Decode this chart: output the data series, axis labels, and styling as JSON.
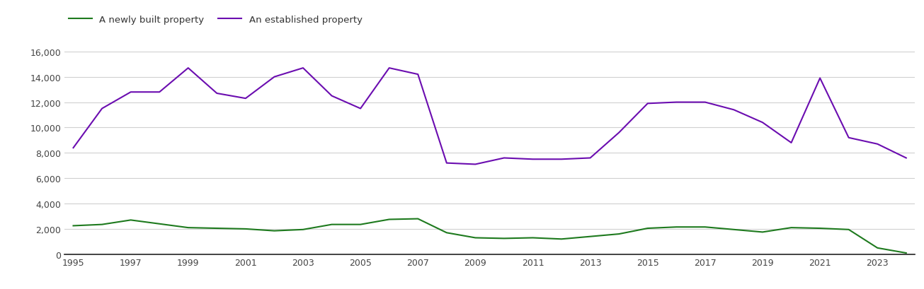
{
  "years": [
    1995,
    1996,
    1997,
    1998,
    1999,
    2000,
    2001,
    2002,
    2003,
    2004,
    2005,
    2006,
    2007,
    2008,
    2009,
    2010,
    2011,
    2012,
    2013,
    2014,
    2015,
    2016,
    2017,
    2018,
    2019,
    2020,
    2021,
    2022,
    2023,
    2024
  ],
  "new_homes": [
    2250,
    2350,
    2700,
    2400,
    2100,
    2050,
    2000,
    1850,
    1950,
    2350,
    2350,
    2750,
    2800,
    1700,
    1300,
    1250,
    1300,
    1200,
    1400,
    1600,
    2050,
    2150,
    2150,
    1950,
    1750,
    2100,
    2050,
    1950,
    500,
    100
  ],
  "established_homes": [
    8400,
    11500,
    12800,
    12800,
    14700,
    12700,
    12300,
    14000,
    14700,
    12500,
    11500,
    14700,
    14200,
    7200,
    7100,
    7600,
    7500,
    7500,
    7600,
    9600,
    11900,
    12000,
    12000,
    11400,
    10400,
    8800,
    13900,
    9200,
    8700,
    7600
  ],
  "new_homes_color": "#1e7a1e",
  "established_homes_color": "#6b0db0",
  "background_color": "#ffffff",
  "grid_color": "#d0d0d0",
  "ylim": [
    0,
    16000
  ],
  "yticks": [
    0,
    2000,
    4000,
    6000,
    8000,
    10000,
    12000,
    14000,
    16000
  ],
  "ytick_labels": [
    "0",
    "2,000",
    "4,000",
    "6,000",
    "8,000",
    "10,000",
    "12,000",
    "14,000",
    "16,000"
  ],
  "xticks": [
    1995,
    1997,
    1999,
    2001,
    2003,
    2005,
    2007,
    2009,
    2011,
    2013,
    2015,
    2017,
    2019,
    2021,
    2023
  ],
  "legend_new": "A newly built property",
  "legend_established": "An established property",
  "line_width": 1.5
}
